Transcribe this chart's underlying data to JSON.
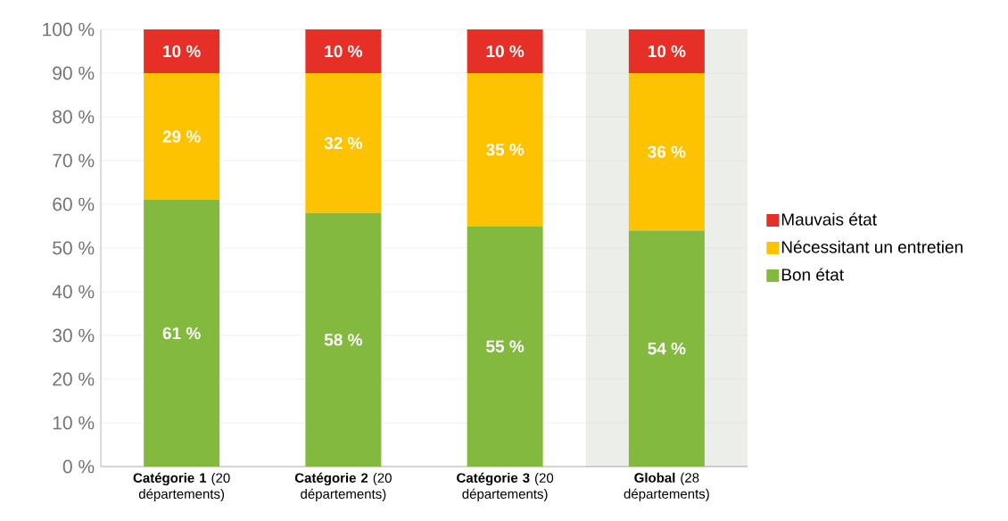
{
  "chart_data": {
    "type": "bar",
    "stacked": true,
    "categories": [
      "**Catégorie 1** (20 départements)",
      "**Catégorie 2** (20 départements)",
      "**Catégorie 3** (20 départements)",
      "**Global** (28 départements)"
    ],
    "series": [
      {
        "name": "Bon état",
        "color": "#84b93f",
        "values": [
          61,
          58,
          55,
          54
        ],
        "value_labels": [
          "61 %",
          "58 %",
          "55 %",
          "54 %"
        ]
      },
      {
        "name": "Nécessitant un entretien",
        "color": "#fdc300",
        "values": [
          29,
          32,
          35,
          36
        ],
        "value_labels": [
          "29 %",
          "32 %",
          "35 %",
          "36 %"
        ]
      },
      {
        "name": "Mauvais état",
        "color": "#e63027",
        "values": [
          10,
          10,
          10,
          10
        ],
        "value_labels": [
          "10 %",
          "10 %",
          "10 %",
          "10 %"
        ]
      }
    ],
    "ylim": [
      0,
      100
    ],
    "yticks": [
      {
        "value": 0,
        "label": "0 %"
      },
      {
        "value": 10,
        "label": "10 %"
      },
      {
        "value": 20,
        "label": "20 %"
      },
      {
        "value": 30,
        "label": "30 %"
      },
      {
        "value": 40,
        "label": "40 %"
      },
      {
        "value": 50,
        "label": "50 %"
      },
      {
        "value": 60,
        "label": "60 %"
      },
      {
        "value": 70,
        "label": "70 %"
      },
      {
        "value": 80,
        "label": "80 %"
      },
      {
        "value": 90,
        "label": "90 %"
      },
      {
        "value": 100,
        "label": "100 %"
      }
    ],
    "grid": "y",
    "legend": "right",
    "bands": [
      {
        "axis": "x",
        "from": "**Global** (28 départements)",
        "to": "**Global** (28 départements)",
        "color": "#eceeea"
      }
    ]
  }
}
